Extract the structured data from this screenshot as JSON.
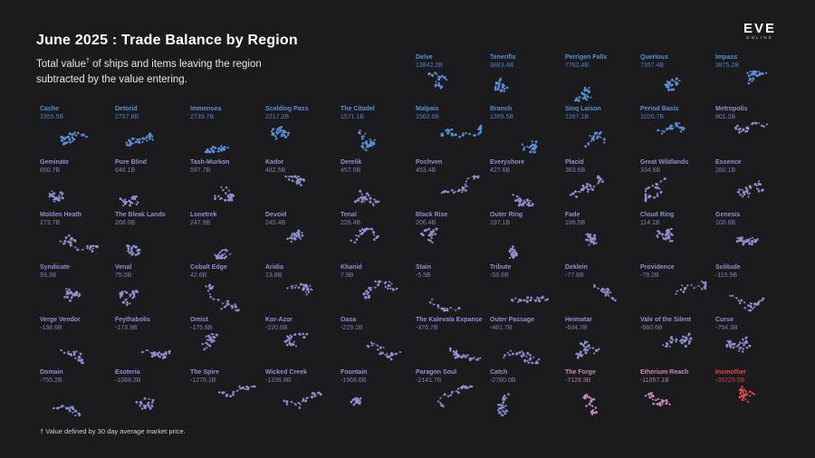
{
  "title": "June 2025 : Trade Balance by Region",
  "subtitle_part1": "Total value",
  "subtitle_sup": "†",
  "subtitle_part2": " of ships and items leaving the region subtracted by the value entering.",
  "footnote": "† Value defined by 30 day average market price.",
  "logo": {
    "main": "EVE",
    "sub": "ONLINE"
  },
  "colors": {
    "background": "#1b1b1d",
    "positive": "#5b8fd8",
    "neutral": "#8f8fd0",
    "negative": "#c78ab8",
    "extreme": "#e04646"
  },
  "chart_data": {
    "type": "table",
    "title": "June 2025 : Trade Balance by Region",
    "columns": [
      "Region",
      "Trade balance"
    ],
    "rows": [
      {
        "name": "Delve",
        "value": "13842.2B"
      },
      {
        "name": "Tenerifis",
        "value": "9883.4B"
      },
      {
        "name": "Perrigen Falls",
        "value": "7762.4B"
      },
      {
        "name": "Querious",
        "value": "7357.4B"
      },
      {
        "name": "Impass",
        "value": "3875.2B"
      },
      {
        "name": "Cache",
        "value": "3355.5B"
      },
      {
        "name": "Detorid",
        "value": "2757.8B"
      },
      {
        "name": "Immensea",
        "value": "2739.7B"
      },
      {
        "name": "Scalding Pass",
        "value": "2217.2B"
      },
      {
        "name": "The Citadel",
        "value": "1571.1B"
      },
      {
        "name": "Malpais",
        "value": "1562.6B"
      },
      {
        "name": "Branch",
        "value": "1399.5B"
      },
      {
        "name": "Sinq Laison",
        "value": "1397.1B"
      },
      {
        "name": "Period Basis",
        "value": "1026.7B"
      },
      {
        "name": "Metropolis",
        "value": "901.2B"
      },
      {
        "name": "Geminate",
        "value": "850.7B"
      },
      {
        "name": "Pure Blind",
        "value": "646.1B"
      },
      {
        "name": "Tash-Murkon",
        "value": "597.7B"
      },
      {
        "name": "Kador",
        "value": "482.5B"
      },
      {
        "name": "Derelik",
        "value": "457.0B"
      },
      {
        "name": "Pochven",
        "value": "453.4B"
      },
      {
        "name": "Everyshore",
        "value": "427.6B"
      },
      {
        "name": "Placid",
        "value": "363.6B"
      },
      {
        "name": "Great Wildlands",
        "value": "334.6B"
      },
      {
        "name": "Essence",
        "value": "280.1B"
      },
      {
        "name": "Molden Heath",
        "value": "273.7B"
      },
      {
        "name": "The Bleak Lands",
        "value": "268.0B"
      },
      {
        "name": "Lonetrek",
        "value": "247.9B"
      },
      {
        "name": "Devoid",
        "value": "245.4B"
      },
      {
        "name": "Tenal",
        "value": "226.4B"
      },
      {
        "name": "Black Rise",
        "value": "206.4B"
      },
      {
        "name": "Outer Ring",
        "value": "197.1B"
      },
      {
        "name": "Fade",
        "value": "198.5B"
      },
      {
        "name": "Cloud Ring",
        "value": "114.1B"
      },
      {
        "name": "Genesis",
        "value": "100.6B"
      },
      {
        "name": "Syndicate",
        "value": "93.3B"
      },
      {
        "name": "Venal",
        "value": "75.0B"
      },
      {
        "name": "Cobalt Edge",
        "value": "42.6B"
      },
      {
        "name": "Aridia",
        "value": "13.8B"
      },
      {
        "name": "Khanid",
        "value": "7.9B"
      },
      {
        "name": "Stain",
        "value": "-5.5B"
      },
      {
        "name": "Tribute",
        "value": "-58.8B"
      },
      {
        "name": "Deklein",
        "value": "-77.6B"
      },
      {
        "name": "Providence",
        "value": "-78.2B"
      },
      {
        "name": "Solitude",
        "value": "-115.9B"
      },
      {
        "name": "Verge Vendor",
        "value": "-138.6B"
      },
      {
        "name": "Feythabolis",
        "value": "-173.9B"
      },
      {
        "name": "Omist",
        "value": "-175.8B"
      },
      {
        "name": "Kor-Azor",
        "value": "-220.8B"
      },
      {
        "name": "Oasa",
        "value": "-229.1B"
      },
      {
        "name": "The Kalevala Expanse",
        "value": "-376.7B"
      },
      {
        "name": "Outer Passage",
        "value": "-461.7B"
      },
      {
        "name": "Heimatar",
        "value": "-634.7B"
      },
      {
        "name": "Vale of the Silent",
        "value": "-660.6B"
      },
      {
        "name": "Curse",
        "value": "-754.3B"
      },
      {
        "name": "Domain",
        "value": "-755.2B"
      },
      {
        "name": "Esoteria",
        "value": "-1068.2B"
      },
      {
        "name": "The Spire",
        "value": "-1278.1B"
      },
      {
        "name": "Wicked Creek",
        "value": "-1336.8B"
      },
      {
        "name": "Fountain",
        "value": "-1968.6B"
      },
      {
        "name": "Paragon Soul",
        "value": "-2141.7B"
      },
      {
        "name": "Catch",
        "value": "-2760.0B"
      },
      {
        "name": "The Forge",
        "value": "-7128.9B"
      },
      {
        "name": "Etherium Reach",
        "value": "-11057.1B"
      },
      {
        "name": "Insmother",
        "value": "-35229.5B"
      }
    ]
  }
}
